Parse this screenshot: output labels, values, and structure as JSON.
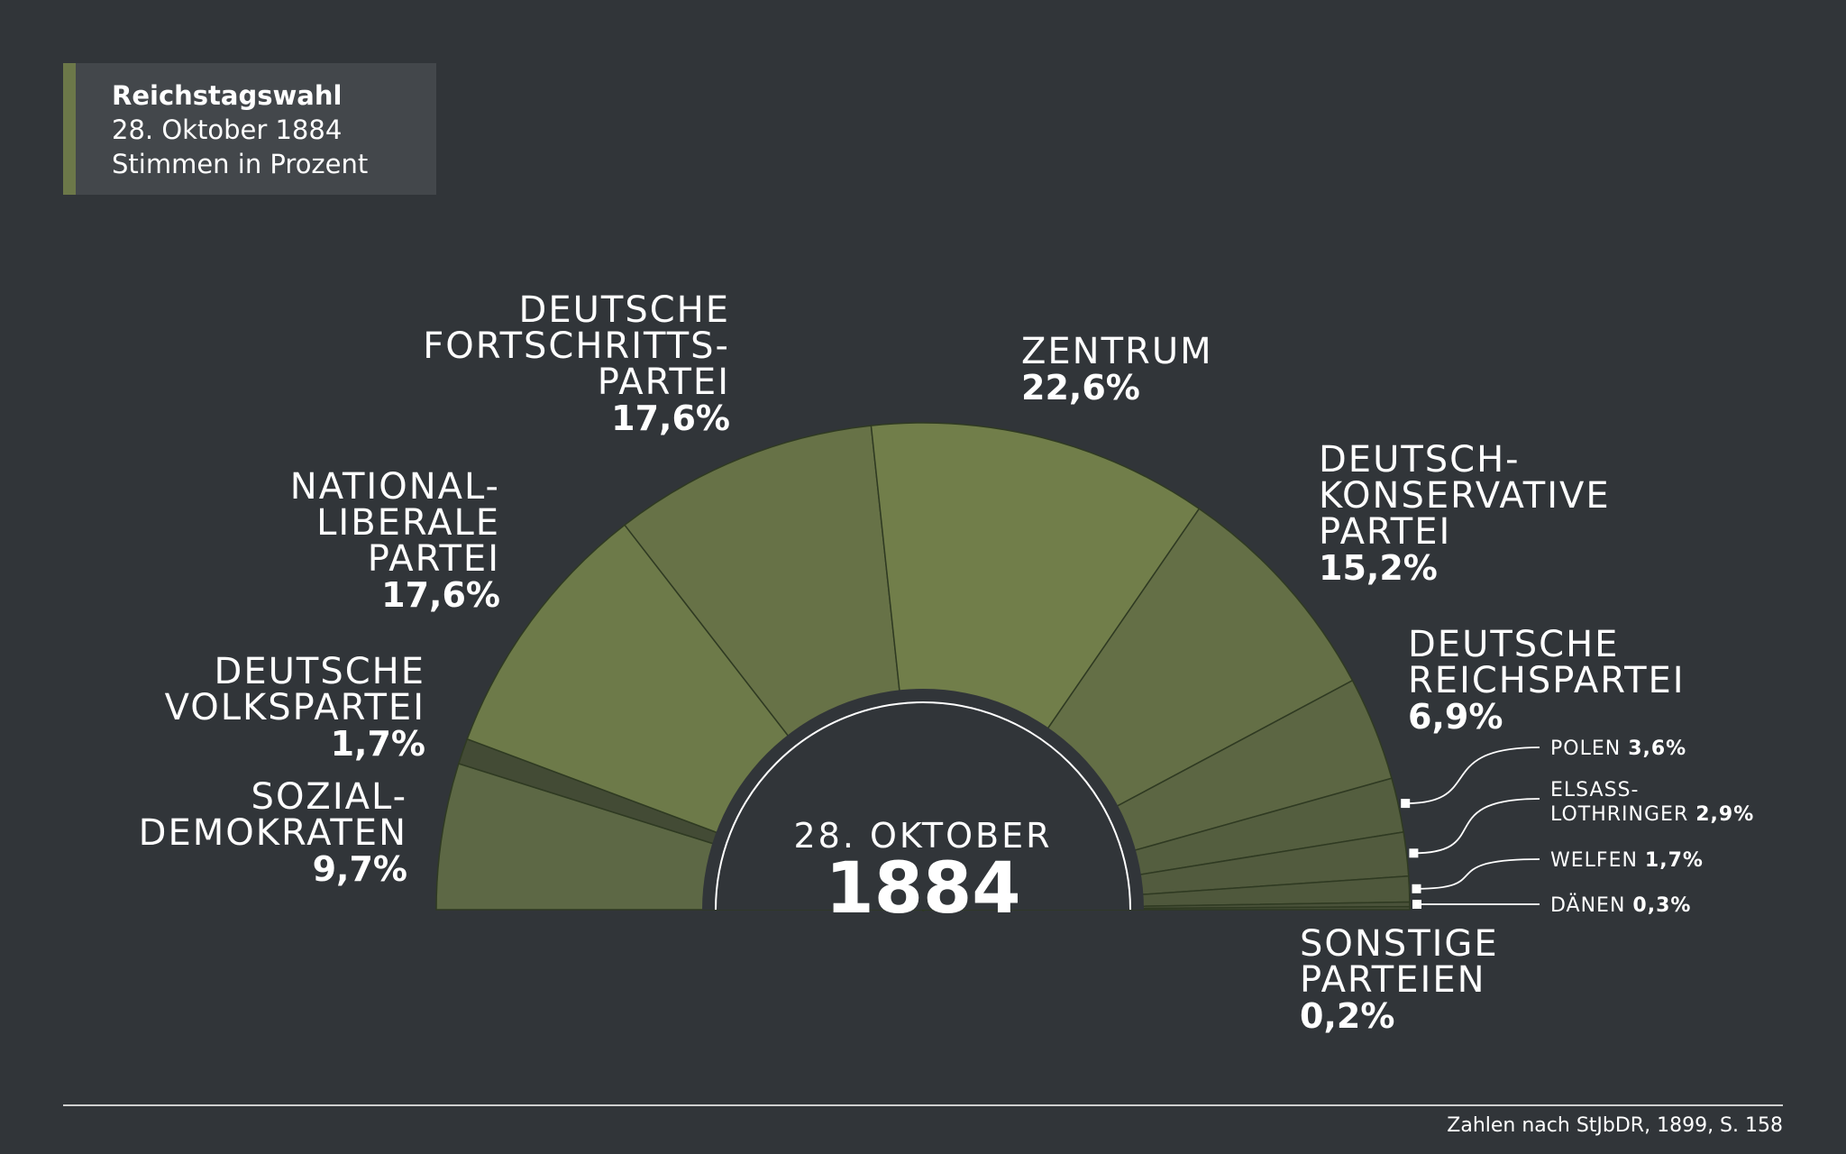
{
  "title": {
    "line1": "Reichstagswahl",
    "line2": "28. Oktober 1884",
    "line3": "Stimmen in Prozent"
  },
  "center": {
    "date": "28. OKTOBER",
    "year": "1884"
  },
  "source": "Zahlen nach StJbDR, 1899, S. 158",
  "chart_data": {
    "type": "pie",
    "variant": "semicircle",
    "unit": "%",
    "slices": [
      {
        "lines": [
          "SOZIAL-",
          "DEMOKRATEN"
        ],
        "value": 9.7,
        "label": "9,7%",
        "color": "#5d6845"
      },
      {
        "lines": [
          "DEUTSCHE",
          "VOLKSPARTEI"
        ],
        "value": 1.7,
        "label": "1,7%",
        "color": "#434b35"
      },
      {
        "lines": [
          "NATIONAL-",
          "LIBERALE",
          "PARTEI"
        ],
        "value": 17.6,
        "label": "17,6%",
        "color": "#6d7a49"
      },
      {
        "lines": [
          "DEUTSCHE",
          "FORTSCHRITTS-",
          "PARTEI"
        ],
        "value": 17.6,
        "label": "17,6%",
        "color": "#677247"
      },
      {
        "lines": [
          "ZENTRUM"
        ],
        "value": 22.6,
        "label": "22,6%",
        "color": "#717e4a"
      },
      {
        "lines": [
          "DEUTSCH-",
          "KONSERVATIVE",
          "PARTEI"
        ],
        "value": 15.2,
        "label": "15,2%",
        "color": "#646f46"
      },
      {
        "lines": [
          "DEUTSCHE",
          "REICHSPARTEI"
        ],
        "value": 6.9,
        "label": "6,9%",
        "color": "#5c6643"
      },
      {
        "lines": [
          "POLEN"
        ],
        "value": 3.6,
        "label": "3,6%",
        "color": "#545e3f"
      },
      {
        "lines": [
          "ELSASS-",
          "LOTHRINGER"
        ],
        "value": 2.9,
        "label": "2,9%",
        "color": "#525b3e"
      },
      {
        "lines": [
          "WELFEN"
        ],
        "value": 1.7,
        "label": "1,7%",
        "color": "#4f583c"
      },
      {
        "lines": [
          "DÄNEN"
        ],
        "value": 0.3,
        "label": "0,3%",
        "color": "#4a523a"
      },
      {
        "lines": [
          "SONSTIGE",
          "PARTEIEN"
        ],
        "value": 0.2,
        "label": "0,2%",
        "color": "#464e37"
      }
    ]
  }
}
